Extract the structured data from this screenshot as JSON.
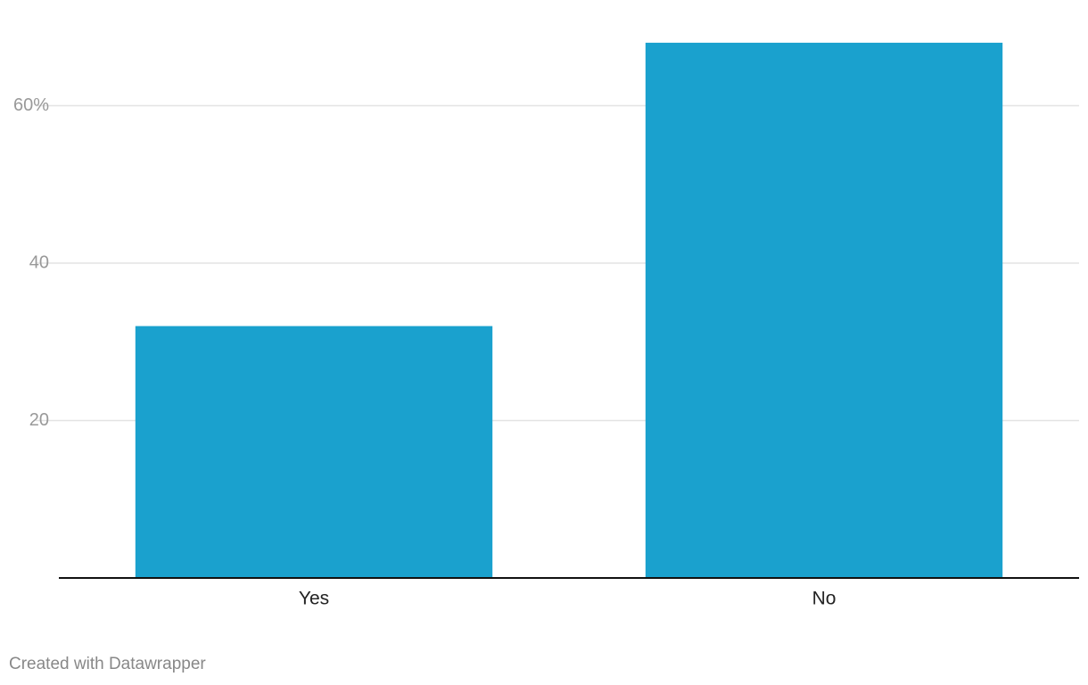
{
  "chart_data": {
    "type": "bar",
    "categories": [
      "Yes",
      "No"
    ],
    "values": [
      32,
      68
    ],
    "color": "#1aa1ce",
    "ylim": [
      0,
      70
    ],
    "yticks": [
      20,
      40,
      {
        "value": 60,
        "label": "60%"
      }
    ],
    "grid": true,
    "credit": "Created with Datawrapper"
  }
}
